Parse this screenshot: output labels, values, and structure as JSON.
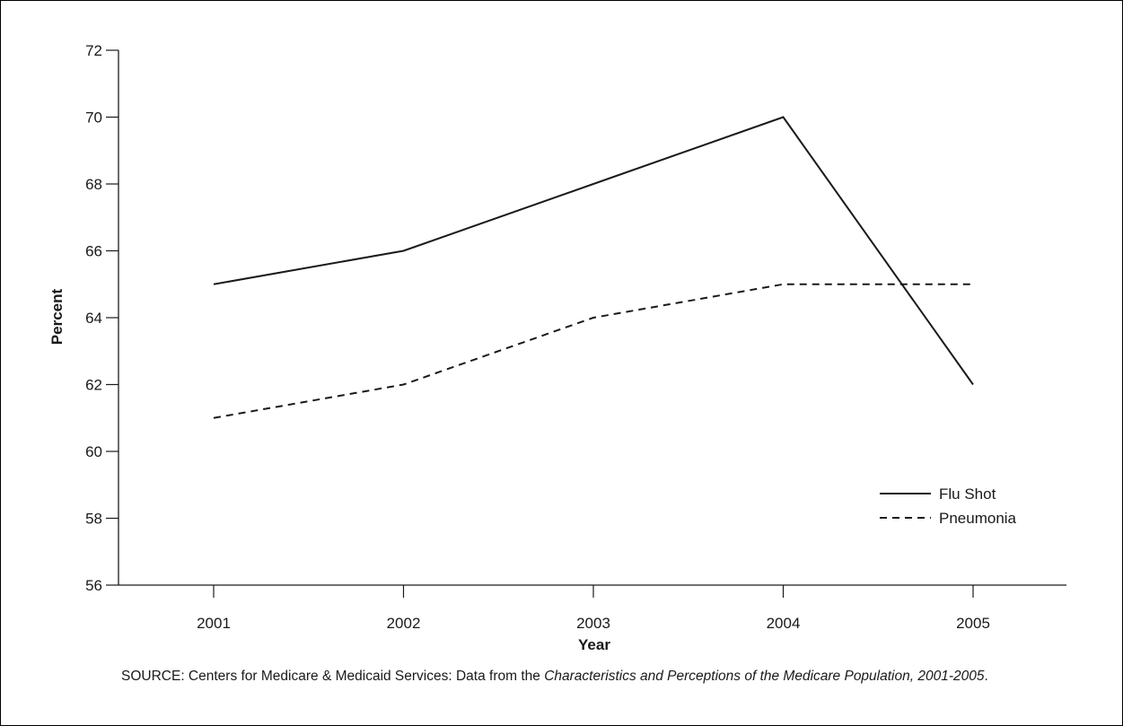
{
  "chart_data": {
    "type": "line",
    "title": "",
    "xlabel": "Year",
    "ylabel": "Percent",
    "x": [
      "2001",
      "2002",
      "2003",
      "2004",
      "2005"
    ],
    "ylim": [
      56,
      72
    ],
    "yticks": [
      56,
      58,
      60,
      62,
      64,
      66,
      68,
      70,
      72
    ],
    "grid": false,
    "legend_position": "bottom-right",
    "series": [
      {
        "name": "Flu Shot",
        "style": "solid",
        "color": "#1a1a1a",
        "values": [
          65,
          66,
          68,
          70,
          62
        ]
      },
      {
        "name": "Pneumonia",
        "style": "dashed",
        "color": "#1a1a1a",
        "values": [
          61,
          62,
          64,
          65,
          65
        ]
      }
    ]
  },
  "source": {
    "prefix": "SOURCE: Centers for Medicare & Medicaid Services: Data from the ",
    "title_italic": "Characteristics and Perceptions of the Medicare Population, 2001-2005",
    "suffix": "."
  }
}
